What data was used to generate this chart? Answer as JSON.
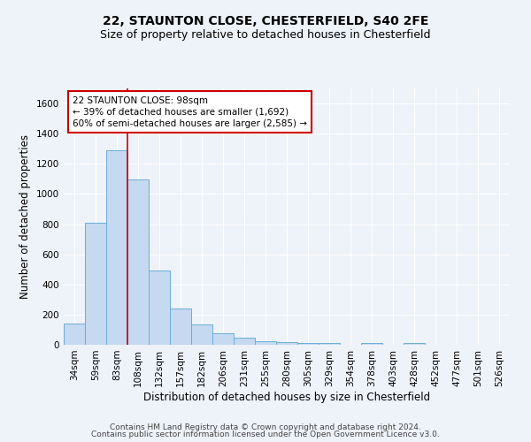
{
  "title_line1": "22, STAUNTON CLOSE, CHESTERFIELD, S40 2FE",
  "title_line2": "Size of property relative to detached houses in Chesterfield",
  "xlabel": "Distribution of detached houses by size in Chesterfield",
  "ylabel": "Number of detached properties",
  "footer_line1": "Contains HM Land Registry data © Crown copyright and database right 2024.",
  "footer_line2": "Contains public sector information licensed under the Open Government Licence v3.0.",
  "categories": [
    "34sqm",
    "59sqm",
    "83sqm",
    "108sqm",
    "132sqm",
    "157sqm",
    "182sqm",
    "206sqm",
    "231sqm",
    "255sqm",
    "280sqm",
    "305sqm",
    "329sqm",
    "354sqm",
    "378sqm",
    "403sqm",
    "428sqm",
    "452sqm",
    "477sqm",
    "501sqm",
    "526sqm"
  ],
  "values": [
    140,
    810,
    1290,
    1095,
    490,
    240,
    135,
    75,
    47,
    25,
    20,
    10,
    12,
    0,
    10,
    0,
    10,
    0,
    0,
    0,
    0
  ],
  "bar_color": "#c5d9f0",
  "bar_edge_color": "#6baed6",
  "vline_color": "#cc0000",
  "vline_x_index": 2.5,
  "annotation_line1": "22 STAUNTON CLOSE: 98sqm",
  "annotation_line2": "← 39% of detached houses are smaller (1,692)",
  "annotation_line3": "60% of semi-detached houses are larger (2,585) →",
  "annotation_box_facecolor": "white",
  "annotation_box_edgecolor": "#cc0000",
  "ylim": [
    0,
    1700
  ],
  "yticks": [
    0,
    200,
    400,
    600,
    800,
    1000,
    1200,
    1400,
    1600
  ],
  "bg_color": "#eef2f9",
  "grid_color": "white",
  "title_fontsize": 10,
  "subtitle_fontsize": 9,
  "xlabel_fontsize": 8.5,
  "ylabel_fontsize": 8.5,
  "tick_fontsize": 7.5,
  "annotation_fontsize": 7.5,
  "footer_fontsize": 6.5
}
